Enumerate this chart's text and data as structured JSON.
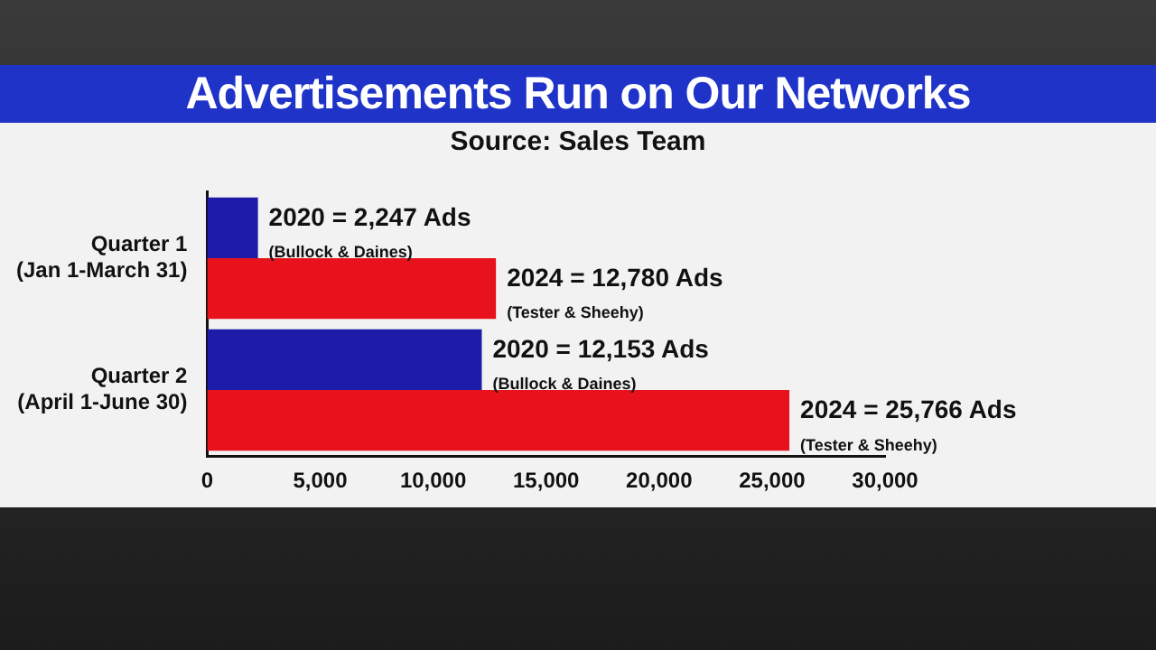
{
  "chart_data": {
    "type": "bar",
    "orientation": "horizontal",
    "title": "Advertisements Run on Our Networks",
    "subtitle": "Source: Sales Team",
    "categories": [
      "Quarter 1\n(Jan 1-March 31)",
      "Quarter 2\n(April 1-June 30)"
    ],
    "series": [
      {
        "color": "#1c1ca8",
        "values": [
          2247,
          12153
        ],
        "value_labels": [
          "2020 = 2,247 Ads\n(Bullock & Daines)",
          "2020 = 12,153 Ads\n(Bullock & Daines)"
        ]
      },
      {
        "color": "#e8121c",
        "values": [
          12780,
          25766
        ],
        "value_labels": [
          "2024 = 12,780 Ads\n(Tester & Sheehy)",
          "2024 = 25,766 Ads\n(Tester & Sheehy)"
        ]
      }
    ],
    "xlim": [
      0,
      30000
    ],
    "xticks": [
      0,
      {
        "value": 5000,
        "label": "5,000"
      },
      {
        "value": 10000,
        "label": "10,000"
      },
      {
        "value": 15000,
        "label": "15,000"
      },
      {
        "value": 20000,
        "label": "20,000"
      },
      {
        "value": 25000,
        "label": "25,000"
      },
      {
        "value": 30000,
        "label": "30,000"
      }
    ],
    "grid": false,
    "legend": false
  }
}
